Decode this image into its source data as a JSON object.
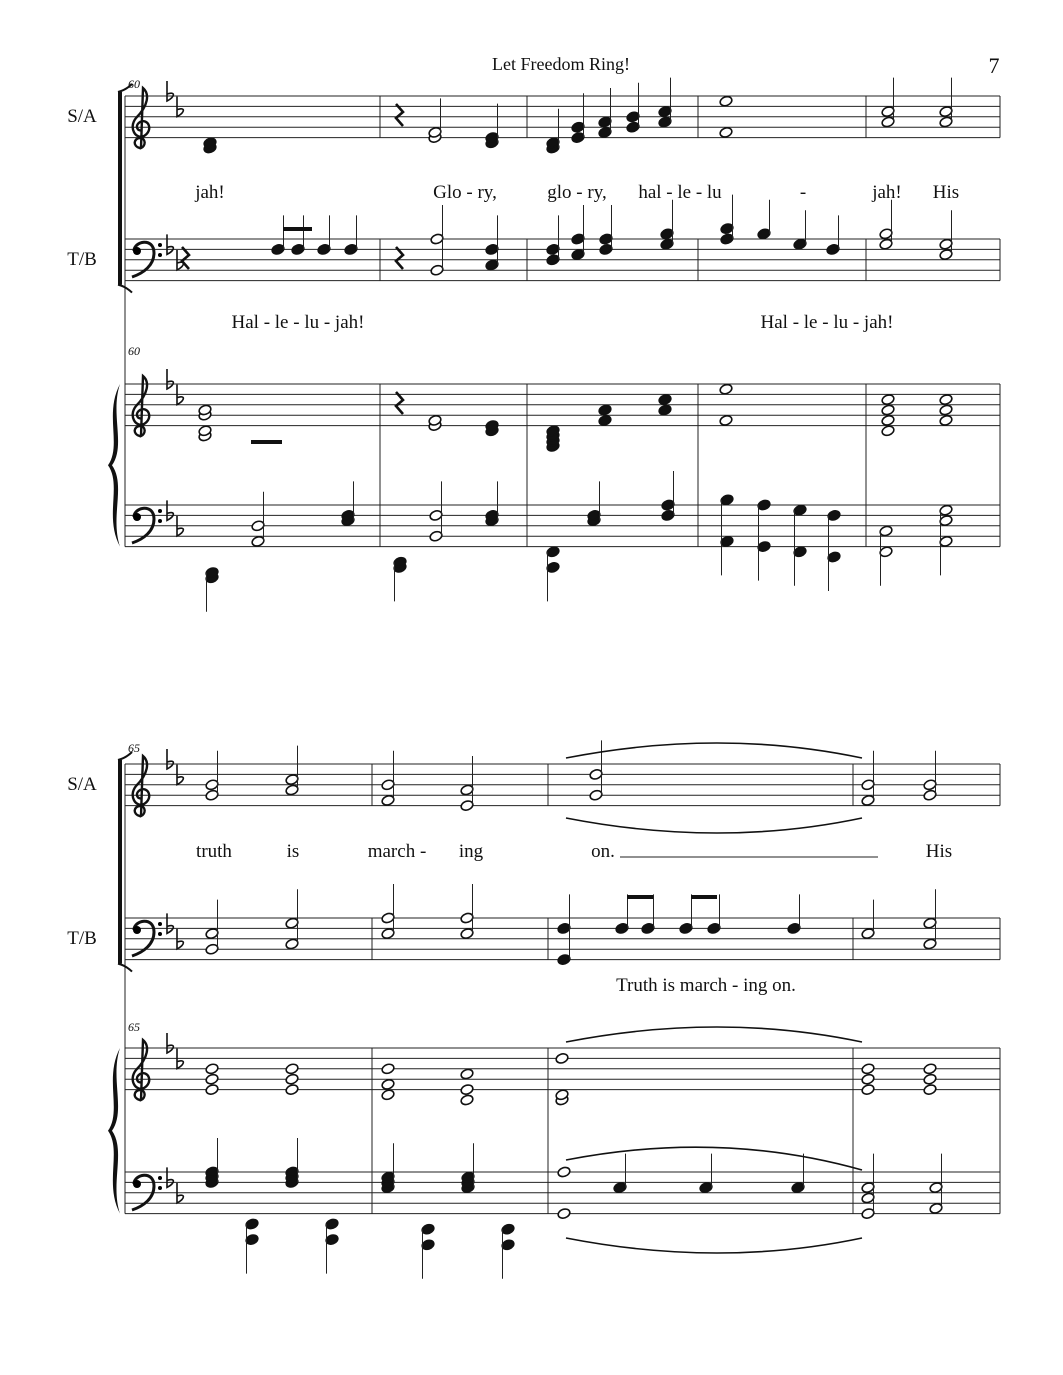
{
  "header": {
    "title": "Let Freedom Ring!",
    "page_number": "7"
  },
  "systems": [
    {
      "measure_number": "60",
      "staff_labels": [
        "S/A",
        "T/B"
      ],
      "soprano_alto_lyrics": [
        "jah!",
        "Glo - ry,",
        "glo - ry,",
        "hal - le - lu",
        "-",
        "jah!",
        "His"
      ],
      "tenor_bass_lyrics": [
        "Hal - le - lu - jah!",
        "Hal - le - lu - jah!"
      ]
    },
    {
      "measure_number": "65",
      "staff_labels": [
        "S/A",
        "T/B"
      ],
      "soprano_alto_lyrics": [
        "truth",
        "is",
        "march -",
        "ing",
        "on.",
        "His"
      ],
      "tenor_bass_lyrics": [
        "Truth is march - ing on."
      ]
    }
  ]
}
